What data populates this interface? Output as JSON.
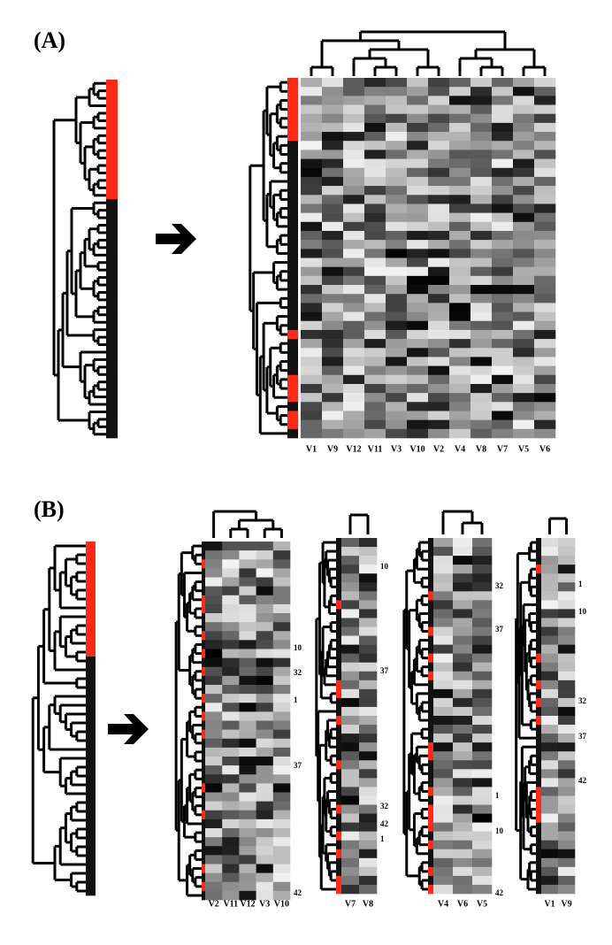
{
  "panel_a": {
    "label": "(A)",
    "columns": [
      "V1",
      "V9",
      "V12",
      "V11",
      "V3",
      "V10",
      "V2",
      "V4",
      "V8",
      "V7",
      "V5",
      "V6"
    ]
  },
  "panel_b": {
    "label": "(B)",
    "heatmaps": [
      {
        "columns": [
          "V2",
          "V11",
          "V12",
          "V3",
          "V10"
        ],
        "row_labels": [
          "10",
          "32",
          "1",
          "37",
          "42"
        ]
      },
      {
        "columns": [
          "V7",
          "V8"
        ],
        "row_labels": [
          "10",
          "37",
          "32",
          "42",
          "1"
        ]
      },
      {
        "columns": [
          "V4",
          "V6",
          "V5"
        ],
        "row_labels": [
          "32",
          "37",
          "1",
          "10",
          "42"
        ]
      },
      {
        "columns": [
          "V1",
          "V9"
        ],
        "row_labels": [
          "1",
          "10",
          "32",
          "37",
          "42"
        ]
      }
    ]
  }
}
